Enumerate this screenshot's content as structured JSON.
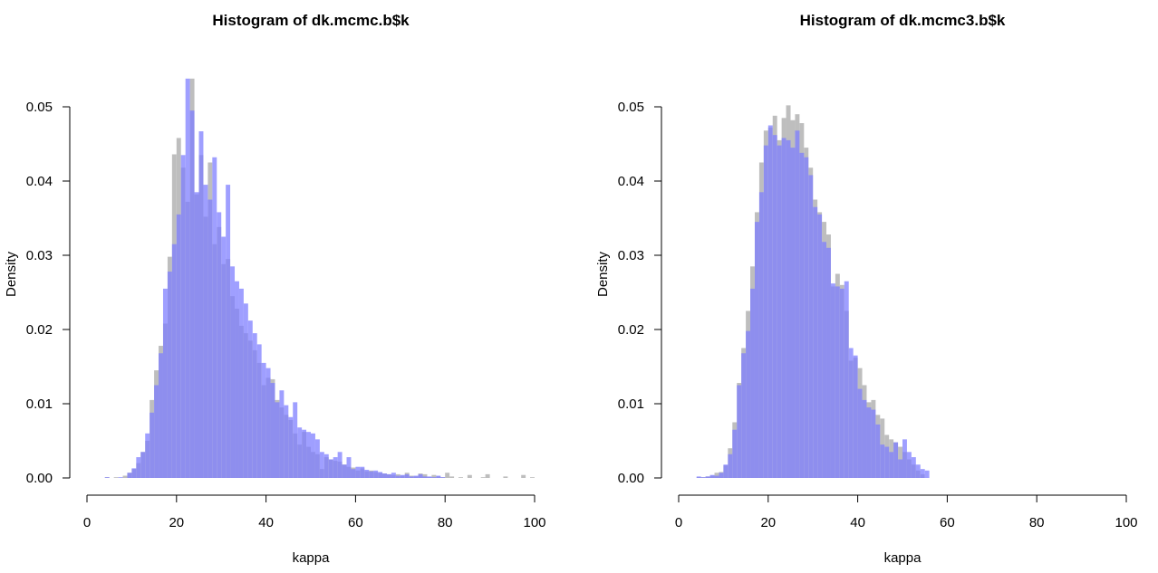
{
  "chart_data": [
    {
      "type": "histogram",
      "title": "Histogram of dk.mcmc.b$k",
      "xlabel": "kappa",
      "ylabel": "Density",
      "xlim": [
        0,
        100
      ],
      "ylim": [
        0,
        0.05
      ],
      "x_ticks": [
        "0",
        "20",
        "40",
        "60",
        "80",
        "100"
      ],
      "y_ticks": [
        "0.00",
        "0.01",
        "0.02",
        "0.03",
        "0.04",
        "0.05"
      ],
      "bin_width": 1,
      "series": [
        {
          "color": "#bebebe",
          "bins_start": 4,
          "values": [
            0.0001,
            0,
            0.0001,
            0,
            0.0003,
            0.0007,
            0.0012,
            0.002,
            0.0035,
            0.005,
            0.0105,
            0.0145,
            0.0178,
            0.0208,
            0.0298,
            0.0436,
            0.0458,
            0.0418,
            0.0372,
            0.0538,
            0.0382,
            0.0435,
            0.0352,
            0.0425,
            0.0315,
            0.0338,
            0.0288,
            0.0295,
            0.0245,
            0.0228,
            0.0205,
            0.0195,
            0.0185,
            0.0172,
            0.0155,
            0.0125,
            0.0135,
            0.0133,
            0.0105,
            0.0095,
            0.0085,
            0.0078,
            0.006,
            0.0045,
            0.0062,
            0.0042,
            0.0035,
            0.0032,
            0.0012,
            0.0028,
            0.0025,
            0.0023,
            0.0022,
            0.0018,
            0.0015,
            0.0014,
            0.001,
            0.0013,
            0.0009,
            0.001,
            0.0008,
            0.0007,
            0.0006,
            0.0005,
            0.0004,
            0.0005,
            0.0003,
            0.0007,
            0.0003,
            0.0002,
            0.0006,
            0.0005,
            0.0001,
            0.0004,
            0.0002,
            0.0001,
            0.0007,
            0.0002,
            0,
            0.0001,
            0,
            0.0004,
            0,
            0,
            0.0001,
            0.0005,
            0,
            0,
            0,
            0.0002,
            0,
            0,
            0,
            0.0004,
            0,
            0.0001
          ]
        },
        {
          "color": "#7f7fff",
          "bins_start": 4,
          "values": [
            0.0001,
            0,
            0,
            0.0001,
            0,
            0.0007,
            0.0013,
            0.0028,
            0.0035,
            0.006,
            0.0088,
            0.0125,
            0.0168,
            0.0255,
            0.0278,
            0.0315,
            0.0355,
            0.0435,
            0.0538,
            0.0495,
            0.0385,
            0.0467,
            0.0395,
            0.0375,
            0.0432,
            0.0358,
            0.0325,
            0.0395,
            0.0285,
            0.0265,
            0.0255,
            0.0235,
            0.0212,
            0.0195,
            0.018,
            0.0155,
            0.0148,
            0.0128,
            0.0102,
            0.0118,
            0.0098,
            0.0082,
            0.0102,
            0.0068,
            0.0065,
            0.0062,
            0.006,
            0.0052,
            0.0035,
            0.0032,
            0.0025,
            0.0028,
            0.0035,
            0.0018,
            0.0028,
            0.0012,
            0.0015,
            0.0015,
            0.0011,
            0.0009,
            0.001,
            0.0008,
            0.0006,
            0.0005,
            0.0007,
            0.0003,
            0.0004,
            0.0005,
            0.0002,
            0.0003,
            0.0005,
            0.0002,
            0.0002,
            0.0001,
            0.0003,
            0.0001
          ]
        }
      ]
    },
    {
      "type": "histogram",
      "title": "Histogram of dk.mcmc3.b$k",
      "xlabel": "kappa",
      "ylabel": "Density",
      "xlim": [
        0,
        100
      ],
      "ylim": [
        0,
        0.05
      ],
      "x_ticks": [
        "0",
        "20",
        "40",
        "60",
        "80",
        "100"
      ],
      "y_ticks": [
        "0.00",
        "0.01",
        "0.02",
        "0.03",
        "0.04",
        "0.05"
      ],
      "bin_width": 1,
      "series": [
        {
          "color": "#bebebe",
          "bins_start": 4,
          "values": [
            0.0001,
            0.0001,
            0.0002,
            0.0003,
            0.0007,
            0.0008,
            0.0017,
            0.004,
            0.0075,
            0.0128,
            0.0175,
            0.0225,
            0.0285,
            0.0358,
            0.0425,
            0.0468,
            0.0472,
            0.0488,
            0.0455,
            0.0485,
            0.0502,
            0.0482,
            0.049,
            0.0478,
            0.0445,
            0.0418,
            0.0375,
            0.0358,
            0.0345,
            0.0328,
            0.0258,
            0.0275,
            0.026,
            0.0225,
            0.0158,
            0.0162,
            0.0148,
            0.0125,
            0.0102,
            0.0105,
            0.0085,
            0.008,
            0.0058,
            0.0052,
            0.0048,
            0.0042,
            0.0035,
            0.0025,
            0.0018,
            0.001,
            0.0005
          ]
        },
        {
          "color": "#7f7fff",
          "bins_start": 4,
          "values": [
            0.0002,
            0.0001,
            0.0002,
            0.0004,
            0.0003,
            0.0007,
            0.0018,
            0.0032,
            0.0065,
            0.0125,
            0.0168,
            0.0198,
            0.0255,
            0.0345,
            0.0385,
            0.0448,
            0.0475,
            0.0462,
            0.0448,
            0.0458,
            0.0455,
            0.0445,
            0.0468,
            0.0438,
            0.0432,
            0.0408,
            0.0365,
            0.0355,
            0.0318,
            0.031,
            0.0262,
            0.0258,
            0.0255,
            0.0265,
            0.0175,
            0.0165,
            0.012,
            0.0105,
            0.0095,
            0.0092,
            0.0072,
            0.0045,
            0.0042,
            0.0035,
            0.0048,
            0.0025,
            0.0052,
            0.0035,
            0.0028,
            0.0018,
            0.0012,
            0.001
          ]
        }
      ]
    }
  ]
}
